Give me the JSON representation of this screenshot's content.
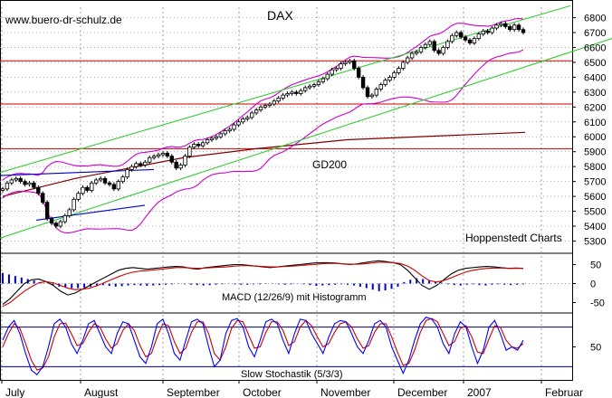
{
  "chart_data": {
    "type": "candlestick",
    "title": "DAX",
    "watermark": "www.buero-dr-schulz.de",
    "credit": "Hoppenstedt Charts",
    "colors": {
      "candle": "#000000",
      "channel": "#33cc33",
      "bollinger": "#cc00cc",
      "support_lines": "#cc0000",
      "gd200": "#800000",
      "macd_signal": "#cc0000",
      "macd_line": "#000000",
      "histogram": "#0000cc",
      "stoch_k": "#0000ff",
      "stoch_d": "#cc0000",
      "stoch_levels": "#000080"
    },
    "price_panel": {
      "ylim": [
        5230,
        6870
      ],
      "yticks": [
        5300,
        5400,
        5500,
        5600,
        5700,
        5800,
        5900,
        6000,
        6100,
        6200,
        6300,
        6400,
        6500,
        6600,
        6700,
        6800
      ],
      "horizontal_lines": [
        5920,
        6220,
        6510
      ],
      "gd200_label": "GD200",
      "gd200": [
        {
          "x": 0,
          "y": 5600
        },
        {
          "x": 80,
          "y": 5720
        },
        {
          "x": 200,
          "y": 5860
        },
        {
          "x": 280,
          "y": 5920
        },
        {
          "x": 380,
          "y": 5980
        },
        {
          "x": 577,
          "y": 6030
        }
      ],
      "closes": [
        5650,
        5690,
        5710,
        5720,
        5700,
        5680,
        5690,
        5660,
        5620,
        5560,
        5450,
        5420,
        5400,
        5430,
        5470,
        5510,
        5580,
        5620,
        5660,
        5640,
        5690,
        5710,
        5720,
        5690,
        5680,
        5650,
        5700,
        5730,
        5780,
        5800,
        5820,
        5810,
        5830,
        5860,
        5870,
        5880,
        5890,
        5870,
        5830,
        5790,
        5810,
        5870,
        5930,
        5950,
        5940,
        5960,
        5980,
        5990,
        6000,
        6020,
        6040,
        6050,
        6080,
        6100,
        6120,
        6130,
        6160,
        6180,
        6200,
        6210,
        6220,
        6240,
        6260,
        6280,
        6290,
        6300,
        6290,
        6310,
        6330,
        6340,
        6350,
        6370,
        6390,
        6420,
        6450,
        6460,
        6490,
        6500,
        6510,
        6460,
        6400,
        6330,
        6270,
        6280,
        6320,
        6350,
        6380,
        6400,
        6430,
        6460,
        6500,
        6530,
        6560,
        6570,
        6600,
        6620,
        6640,
        6580,
        6560,
        6600,
        6640,
        6680,
        6700,
        6670,
        6650,
        6630,
        6660,
        6690,
        6710,
        6700,
        6730,
        6750,
        6760,
        6740,
        6720,
        6750,
        6720,
        6700
      ],
      "channel_upper": [
        {
          "x": 0,
          "y": 5760
        },
        {
          "x": 630,
          "y": 6880
        }
      ],
      "channel_lower": [
        {
          "x": 0,
          "y": 5320
        },
        {
          "x": 676,
          "y": 6660
        }
      ],
      "short_trend_lines": [
        {
          "from": {
            "x": 0,
            "y": 5740
          },
          "to": {
            "x": 170,
            "y": 5780
          },
          "color": "#0000cc"
        },
        {
          "from": {
            "x": 40,
            "y": 5440
          },
          "to": {
            "x": 160,
            "y": 5540
          },
          "color": "#0000cc"
        }
      ]
    },
    "macd_panel": {
      "label": "MACD (12/26/9) mit Histogramm",
      "ylim": [
        -75,
        75
      ],
      "yticks": [
        50,
        0,
        -50
      ],
      "ytick_labels": [
        "50",
        "0",
        "-50"
      ],
      "macd": [
        -55,
        -40,
        -20,
        0,
        10,
        12,
        5,
        -5,
        -20,
        -30,
        -25,
        -15,
        -5,
        5,
        15,
        25,
        35,
        40,
        42,
        40,
        38,
        40,
        42,
        44,
        45,
        44,
        40,
        38,
        42,
        44,
        46,
        48,
        50,
        50,
        48,
        46,
        44,
        42,
        44,
        46,
        48,
        50,
        52,
        54,
        55,
        55,
        54,
        52,
        50,
        52,
        55,
        58,
        60,
        58,
        55,
        50,
        35,
        15,
        -5,
        -15,
        -5,
        10,
        25,
        35,
        40,
        42,
        44,
        45,
        44,
        42,
        40,
        41,
        40
      ],
      "signal": [
        -60,
        -50,
        -35,
        -20,
        -8,
        2,
        5,
        2,
        -5,
        -12,
        -16,
        -15,
        -12,
        -6,
        2,
        10,
        18,
        25,
        30,
        33,
        34,
        36,
        38,
        40,
        42,
        42,
        41,
        40,
        41,
        42,
        43,
        44,
        46,
        47,
        47,
        46,
        45,
        44,
        44,
        45,
        46,
        47,
        49,
        50,
        52,
        53,
        53,
        52,
        51,
        51,
        52,
        54,
        56,
        56,
        55,
        53,
        46,
        35,
        20,
        8,
        4,
        8,
        15,
        23,
        30,
        35,
        38,
        40,
        41,
        41,
        40,
        40,
        40
      ],
      "histogram": [
        28,
        24,
        20,
        16,
        12,
        8,
        4,
        0,
        -4,
        -8,
        -10,
        -12,
        -12,
        -10,
        -8,
        -6,
        -4,
        -6,
        -8,
        -7,
        -5,
        -4,
        -5,
        -6,
        -5,
        -4,
        -3,
        -2,
        -1,
        -2,
        -3,
        -4,
        -5,
        -4,
        -3,
        -2,
        -1,
        -2,
        -3,
        -3,
        -2,
        -2,
        -1,
        -1,
        -2,
        -3,
        -2,
        -1,
        -2,
        -4,
        -6,
        -5,
        -4,
        -3,
        -2,
        -3,
        -5,
        -8,
        -12,
        -16,
        -20,
        -18,
        -14,
        -8,
        4,
        10,
        14,
        12,
        8,
        4,
        2,
        -2,
        -4,
        -5,
        -3,
        -2,
        -4,
        -5,
        -3,
        -2,
        -3,
        -4,
        -3,
        -2
      ]
    },
    "stoch_panel": {
      "label": "Slow Stochastik (5/3/3)",
      "ylim": [
        0,
        100
      ],
      "levels": [
        80,
        20
      ],
      "yticks": [
        50
      ],
      "ytick_labels": [
        "50"
      ],
      "k": [
        60,
        80,
        90,
        70,
        40,
        15,
        8,
        20,
        50,
        85,
        92,
        80,
        55,
        40,
        60,
        85,
        90,
        70,
        50,
        40,
        70,
        88,
        85,
        60,
        35,
        25,
        50,
        85,
        92,
        70,
        40,
        30,
        60,
        88,
        92,
        85,
        50,
        20,
        30,
        70,
        90,
        93,
        80,
        50,
        35,
        60,
        88,
        92,
        85,
        60,
        40,
        70,
        92,
        90,
        70,
        55,
        40,
        65,
        85,
        90,
        88,
        70,
        50,
        40,
        60,
        85,
        90,
        80,
        50,
        30,
        10,
        30,
        60,
        85,
        95,
        92,
        80,
        55,
        40,
        70,
        88,
        80,
        50,
        25,
        45,
        80,
        90,
        70,
        45,
        50,
        45,
        60
      ],
      "d": [
        50,
        70,
        85,
        78,
        55,
        30,
        15,
        18,
        35,
        65,
        85,
        86,
        70,
        52,
        55,
        72,
        85,
        80,
        62,
        48,
        55,
        75,
        85,
        75,
        52,
        35,
        40,
        65,
        85,
        82,
        58,
        40,
        48,
        72,
        88,
        88,
        70,
        40,
        30,
        50,
        78,
        90,
        88,
        68,
        48,
        50,
        72,
        88,
        88,
        75,
        52,
        58,
        80,
        90,
        82,
        65,
        50,
        55,
        72,
        85,
        88,
        80,
        62,
        48,
        52,
        72,
        85,
        85,
        65,
        42,
        22,
        25,
        45,
        72,
        90,
        93,
        88,
        70,
        52,
        58,
        78,
        82,
        65,
        42,
        40,
        62,
        82,
        80,
        60,
        50,
        48,
        55
      ]
    },
    "x_axis": {
      "months": [
        "July",
        "August",
        "September",
        "October",
        "November",
        "December",
        "2007",
        "Februar"
      ]
    }
  }
}
